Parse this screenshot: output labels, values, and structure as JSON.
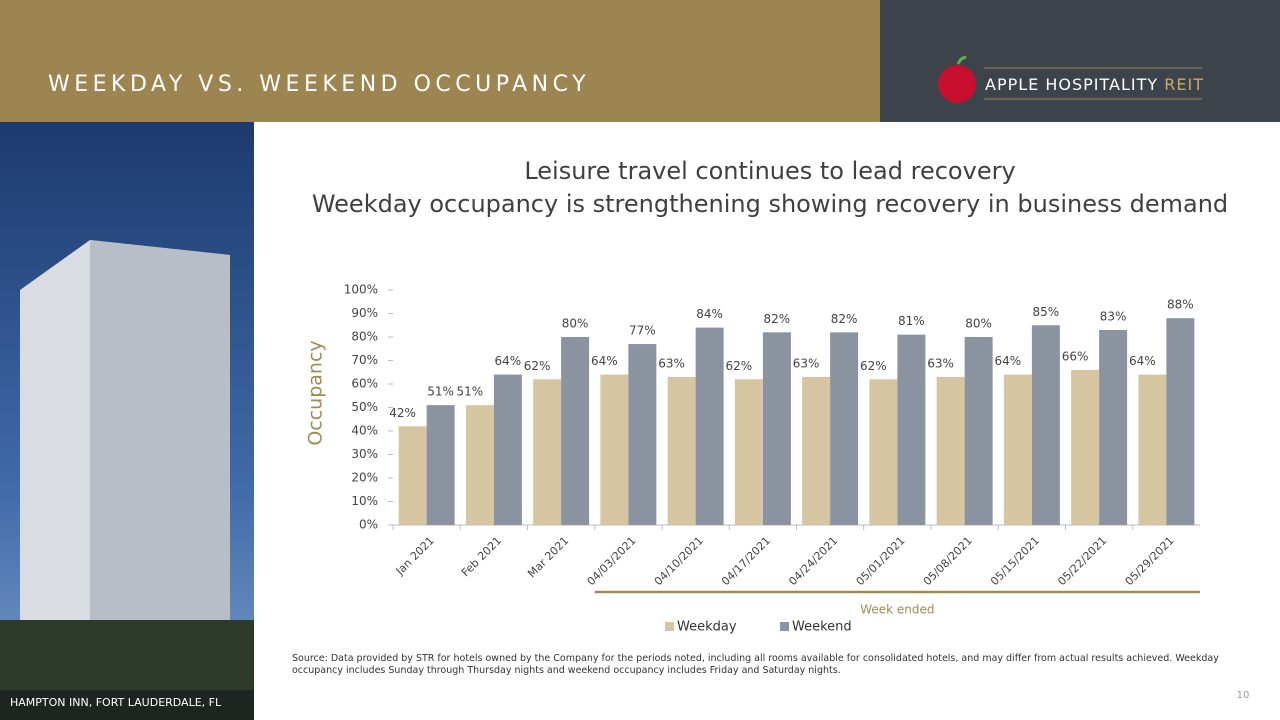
{
  "header": {
    "title": "WEEKDAY VS. WEEKEND OCCUPANCY",
    "logo_name": "APPLE HOSPITALITY",
    "logo_accent": "REIT"
  },
  "photo_caption": "HAMPTON INN, FORT LAUDERDALE, FL",
  "chart_data": {
    "type": "bar",
    "title": "Leisure travel continues to lead recovery",
    "subtitle": "Weekday occupancy is strengthening showing recovery in business demand",
    "y_label": "Occupancy",
    "categories": [
      "Jan 2021",
      "Feb 2021",
      "Mar 2021",
      "04/03/2021",
      "04/10/2021",
      "04/17/2021",
      "04/24/2021",
      "05/01/2021",
      "05/08/2021",
      "05/15/2021",
      "05/22/2021",
      "05/29/2021"
    ],
    "series": [
      {
        "name": "Weekday",
        "color": "#d5c6a1",
        "values": [
          42,
          51,
          62,
          64,
          63,
          62,
          63,
          62,
          63,
          64,
          66,
          64
        ],
        "value_labels": [
          "42%",
          "51%",
          "62%",
          "64%",
          "63%",
          "62%",
          "63%",
          "62%",
          "63%",
          "64%",
          "66%",
          "64%"
        ]
      },
      {
        "name": "Weekend",
        "color": "#8a939f",
        "values": [
          51,
          64,
          80,
          77,
          84,
          82,
          82,
          81,
          80,
          85,
          83,
          88
        ],
        "value_labels": [
          "51%",
          "64%",
          "80%",
          "77%",
          "84%",
          "82%",
          "82%",
          "81%",
          "80%",
          "85%",
          "83%",
          "88%"
        ]
      }
    ],
    "ylim": [
      0,
      100
    ],
    "yticks": [
      {
        "value": 0,
        "label": "0%"
      },
      {
        "value": 10,
        "label": "10%"
      },
      {
        "value": 20,
        "label": "20%"
      },
      {
        "value": 30,
        "label": "30%"
      },
      {
        "value": 40,
        "label": "40%"
      },
      {
        "value": 50,
        "label": "50%"
      },
      {
        "value": 60,
        "label": "60%"
      },
      {
        "value": 70,
        "label": "70%"
      },
      {
        "value": 80,
        "label": "80%"
      },
      {
        "value": 90,
        "label": "90%"
      },
      {
        "value": 100,
        "label": "100%"
      }
    ],
    "grid": false,
    "legend": "bottom",
    "bracket_label": "Week ended"
  },
  "source": "Source:  Data provided by STR for hotels owned by the Company for the periods noted, including all rooms available for consolidated hotels, and may differ from actual results achieved. Weekday occupancy includes Sunday through Thursday nights and weekend occupancy includes Friday and Saturday nights.",
  "page_number": 10
}
